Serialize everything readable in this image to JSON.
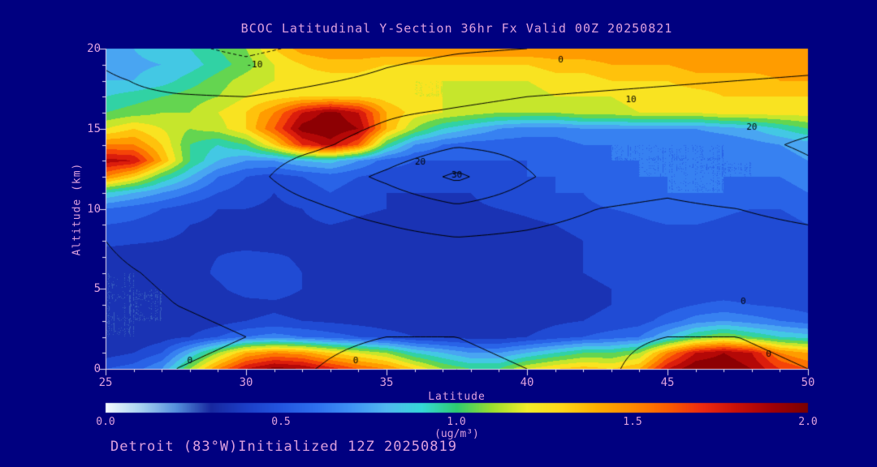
{
  "window": {
    "background": "#000080",
    "text_color": "#DDA0DD",
    "axis_color": "#E8DCF0",
    "contour_color": "#000000"
  },
  "chart_data": {
    "type": "heatmap",
    "title": "BCOC Latitudinal Y-Section 36hr  Fx Valid 00Z 20250821",
    "caption": "Detroit (83°W)Initialized 12Z 20250819",
    "xlabel": "Latitude",
    "ylabel": "Altitude (km)",
    "x_range": [
      25,
      50
    ],
    "y_range": [
      0,
      20
    ],
    "x_tick_labels": [
      "25",
      "30",
      "35",
      "40",
      "45",
      "50"
    ],
    "y_tick_labels": [
      "20",
      "15",
      "10",
      "5",
      "0"
    ],
    "colorbar": {
      "tick_labels": [
        "0.0",
        "0.5",
        "1.0",
        "1.5",
        "2.0"
      ],
      "unit": "(ug/m³)",
      "min": 0,
      "max": 2
    },
    "colormap_stops": [
      [
        0.0,
        "#F4FAFF"
      ],
      [
        0.1,
        "#A8D2F0"
      ],
      [
        0.2,
        "#5590DC"
      ],
      [
        0.3,
        "#1728A0"
      ],
      [
        0.4,
        "#1C3FC8"
      ],
      [
        0.5,
        "#2356E0"
      ],
      [
        0.6,
        "#2E70EE"
      ],
      [
        0.7,
        "#3F92F4"
      ],
      [
        0.8,
        "#52B8F0"
      ],
      [
        0.9,
        "#35D8D8"
      ],
      [
        1.0,
        "#2ECC71"
      ],
      [
        1.1,
        "#9ADE2E"
      ],
      [
        1.2,
        "#F2EE2A"
      ],
      [
        1.3,
        "#FFD718"
      ],
      [
        1.4,
        "#FFAE00"
      ],
      [
        1.5,
        "#FF8A00"
      ],
      [
        1.6,
        "#FB5E00"
      ],
      [
        1.7,
        "#EE2A10"
      ],
      [
        1.8,
        "#C81008"
      ],
      [
        1.9,
        "#A00006"
      ],
      [
        2.0,
        "#7A0000"
      ]
    ],
    "fill_grid": {
      "lat_start": 25,
      "lat_step": 1,
      "alt_start": 0,
      "alt_step": 1,
      "values": [
        [
          0.5,
          0.55,
          0.7,
          1.1,
          1.5,
          1.8,
          1.95,
          1.9,
          1.75,
          1.6,
          1.5,
          1.3,
          1.1,
          1.0,
          1.0,
          1.2,
          1.3,
          1.35,
          1.3,
          1.4,
          1.8,
          2.0,
          2.0,
          1.9,
          1.7,
          1.6
        ],
        [
          0.35,
          0.4,
          0.5,
          0.8,
          1.1,
          1.4,
          1.5,
          1.45,
          1.3,
          1.2,
          1.1,
          0.9,
          0.8,
          0.7,
          0.7,
          0.8,
          0.9,
          1.0,
          1.0,
          1.1,
          1.5,
          1.8,
          1.9,
          1.8,
          1.5,
          1.4
        ],
        [
          0.3,
          0.3,
          0.35,
          0.4,
          0.5,
          0.6,
          0.65,
          0.6,
          0.55,
          0.5,
          0.45,
          0.4,
          0.38,
          0.36,
          0.35,
          0.4,
          0.45,
          0.5,
          0.55,
          0.6,
          0.8,
          1.0,
          1.1,
          1.0,
          0.9,
          0.85
        ],
        [
          0.3,
          0.3,
          0.3,
          0.32,
          0.35,
          0.4,
          0.42,
          0.4,
          0.38,
          0.36,
          0.34,
          0.33,
          0.33,
          0.33,
          0.33,
          0.35,
          0.38,
          0.4,
          0.42,
          0.45,
          0.55,
          0.65,
          0.7,
          0.65,
          0.6,
          0.55
        ],
        [
          0.3,
          0.3,
          0.3,
          0.3,
          0.32,
          0.36,
          0.38,
          0.36,
          0.34,
          0.33,
          0.32,
          0.32,
          0.32,
          0.32,
          0.32,
          0.34,
          0.36,
          0.38,
          0.4,
          0.42,
          0.45,
          0.5,
          0.52,
          0.5,
          0.48,
          0.45
        ],
        [
          0.3,
          0.3,
          0.3,
          0.32,
          0.38,
          0.45,
          0.45,
          0.4,
          0.35,
          0.33,
          0.32,
          0.32,
          0.33,
          0.34,
          0.33,
          0.34,
          0.36,
          0.38,
          0.4,
          0.4,
          0.42,
          0.45,
          0.45,
          0.45,
          0.42,
          0.4
        ],
        [
          0.3,
          0.3,
          0.32,
          0.35,
          0.42,
          0.48,
          0.45,
          0.4,
          0.36,
          0.34,
          0.33,
          0.33,
          0.35,
          0.36,
          0.35,
          0.35,
          0.37,
          0.4,
          0.42,
          0.42,
          0.44,
          0.45,
          0.45,
          0.44,
          0.42,
          0.42
        ],
        [
          0.32,
          0.32,
          0.33,
          0.36,
          0.4,
          0.44,
          0.42,
          0.38,
          0.36,
          0.35,
          0.34,
          0.34,
          0.35,
          0.36,
          0.36,
          0.36,
          0.38,
          0.4,
          0.43,
          0.45,
          0.46,
          0.46,
          0.45,
          0.43,
          0.43,
          0.44
        ],
        [
          0.45,
          0.42,
          0.4,
          0.38,
          0.36,
          0.34,
          0.33,
          0.35,
          0.38,
          0.36,
          0.34,
          0.33,
          0.33,
          0.33,
          0.34,
          0.36,
          0.38,
          0.4,
          0.42,
          0.45,
          0.45,
          0.45,
          0.42,
          0.4,
          0.42,
          0.45
        ],
        [
          0.5,
          0.48,
          0.45,
          0.4,
          0.38,
          0.36,
          0.35,
          0.38,
          0.4,
          0.38,
          0.36,
          0.35,
          0.35,
          0.35,
          0.36,
          0.38,
          0.4,
          0.42,
          0.45,
          0.48,
          0.5,
          0.5,
          0.48,
          0.45,
          0.45,
          0.5
        ],
        [
          0.6,
          0.55,
          0.5,
          0.45,
          0.4,
          0.4,
          0.38,
          0.4,
          0.45,
          0.42,
          0.4,
          0.38,
          0.38,
          0.38,
          0.4,
          0.42,
          0.45,
          0.48,
          0.5,
          0.52,
          0.55,
          0.55,
          0.52,
          0.5,
          0.5,
          0.55
        ],
        [
          0.9,
          0.8,
          0.7,
          0.6,
          0.5,
          0.45,
          0.4,
          0.45,
          0.5,
          0.45,
          0.4,
          0.4,
          0.4,
          0.4,
          0.45,
          0.45,
          0.5,
          0.5,
          0.55,
          0.55,
          0.6,
          0.6,
          0.6,
          0.55,
          0.55,
          0.6
        ],
        [
          1.5,
          1.3,
          1.0,
          0.8,
          0.6,
          0.5,
          0.45,
          0.5,
          0.55,
          0.5,
          0.45,
          0.45,
          0.45,
          0.45,
          0.45,
          0.5,
          0.5,
          0.55,
          0.55,
          0.6,
          0.6,
          0.6,
          0.6,
          0.6,
          0.6,
          0.65
        ],
        [
          1.85,
          1.8,
          1.4,
          1.0,
          0.8,
          0.7,
          0.7,
          0.8,
          0.85,
          0.7,
          0.55,
          0.5,
          0.5,
          0.5,
          0.5,
          0.5,
          0.55,
          0.55,
          0.6,
          0.6,
          0.6,
          0.6,
          0.6,
          0.6,
          0.65,
          0.7
        ],
        [
          1.5,
          1.5,
          1.3,
          1.0,
          0.9,
          1.0,
          1.3,
          1.7,
          1.85,
          1.6,
          1.0,
          0.7,
          0.6,
          0.55,
          0.55,
          0.55,
          0.55,
          0.6,
          0.6,
          0.6,
          0.6,
          0.6,
          0.6,
          0.65,
          0.7,
          0.75
        ],
        [
          1.2,
          1.3,
          1.2,
          1.1,
          1.15,
          1.3,
          1.6,
          1.95,
          2.0,
          1.9,
          1.4,
          1.1,
          0.9,
          0.8,
          0.7,
          0.65,
          0.65,
          0.7,
          0.7,
          0.7,
          0.7,
          0.7,
          0.75,
          0.8,
          0.9,
          1.0
        ],
        [
          1.0,
          1.05,
          1.1,
          1.1,
          1.2,
          1.3,
          1.5,
          1.8,
          1.95,
          1.8,
          1.4,
          1.25,
          1.2,
          1.15,
          1.1,
          1.1,
          1.1,
          1.15,
          1.15,
          1.2,
          1.2,
          1.2,
          1.25,
          1.25,
          1.25,
          1.25
        ],
        [
          0.9,
          0.95,
          1.0,
          1.05,
          1.1,
          1.2,
          1.25,
          1.3,
          1.3,
          1.3,
          1.25,
          1.2,
          1.2,
          1.15,
          1.15,
          1.15,
          1.2,
          1.2,
          1.2,
          1.25,
          1.25,
          1.25,
          1.3,
          1.3,
          1.3,
          1.3
        ],
        [
          0.8,
          0.8,
          0.85,
          0.95,
          1.05,
          1.15,
          1.2,
          1.25,
          1.25,
          1.25,
          1.2,
          1.2,
          1.2,
          1.2,
          1.2,
          1.2,
          1.25,
          1.25,
          1.3,
          1.3,
          1.3,
          1.35,
          1.35,
          1.35,
          1.4,
          1.4
        ],
        [
          0.75,
          0.78,
          0.8,
          0.85,
          0.95,
          1.05,
          1.2,
          1.3,
          1.35,
          1.35,
          1.3,
          1.3,
          1.3,
          1.3,
          1.3,
          1.3,
          1.35,
          1.35,
          1.4,
          1.4,
          1.4,
          1.45,
          1.45,
          1.45,
          1.45,
          1.5
        ],
        [
          0.8,
          0.8,
          0.85,
          0.9,
          1.0,
          1.1,
          1.3,
          1.45,
          1.5,
          1.5,
          1.5,
          1.5,
          1.5,
          1.5,
          1.5,
          1.5,
          1.5,
          1.5,
          1.5,
          1.5,
          1.5,
          1.5,
          1.5,
          1.5,
          1.5,
          1.5
        ]
      ]
    },
    "contour_grid": {
      "lat_start": 25,
      "lat_step": 2.5,
      "alt_start": 0,
      "alt_step": 2,
      "levels": [
        -10,
        0,
        10,
        20,
        30
      ],
      "values": [
        [
          -2,
          0,
          1,
          0,
          -2,
          -1,
          0,
          1,
          -2,
          -1,
          0
        ],
        [
          -3,
          -1,
          0,
          1,
          0,
          0,
          1,
          1,
          0,
          0,
          1
        ],
        [
          -2,
          0,
          1,
          1,
          1,
          2,
          2,
          2,
          1,
          2,
          3
        ],
        [
          -1,
          1,
          2,
          2,
          3,
          4,
          4,
          3,
          3,
          4,
          5
        ],
        [
          0,
          3,
          4,
          5,
          7,
          9,
          8,
          6,
          6,
          7,
          8
        ],
        [
          1,
          5,
          6,
          9,
          13,
          18,
          14,
          10,
          9,
          10,
          12
        ],
        [
          5,
          6,
          8,
          14,
          22,
          32,
          21,
          13,
          12,
          14,
          18
        ],
        [
          8,
          7,
          7,
          9,
          13,
          19,
          17,
          16,
          16,
          18,
          21
        ],
        [
          2,
          3,
          4,
          6,
          9,
          11,
          13,
          14,
          15,
          16,
          17
        ],
        [
          1,
          -2,
          -4,
          -1,
          2,
          5,
          7,
          8,
          9,
          10,
          11
        ],
        [
          -2,
          -8,
          -12,
          -8,
          -3,
          -1,
          0,
          2,
          3,
          4,
          5
        ]
      ]
    },
    "contour_labels": [
      {
        "text": "-10",
        "lat": 30.3,
        "alt": 19.0
      },
      {
        "text": "0",
        "lat": 41.2,
        "alt": 19.3
      },
      {
        "text": "10",
        "lat": 43.7,
        "alt": 16.8
      },
      {
        "text": "20",
        "lat": 48.0,
        "alt": 15.1
      },
      {
        "text": "20",
        "lat": 36.2,
        "alt": 12.9
      },
      {
        "text": "30",
        "lat": 37.5,
        "alt": 12.1
      },
      {
        "text": "0",
        "lat": 47.7,
        "alt": 4.2
      },
      {
        "text": "0",
        "lat": 28.0,
        "alt": 0.5
      },
      {
        "text": "0",
        "lat": 33.9,
        "alt": 0.5
      },
      {
        "text": "0",
        "lat": 48.6,
        "alt": 0.9
      }
    ]
  }
}
